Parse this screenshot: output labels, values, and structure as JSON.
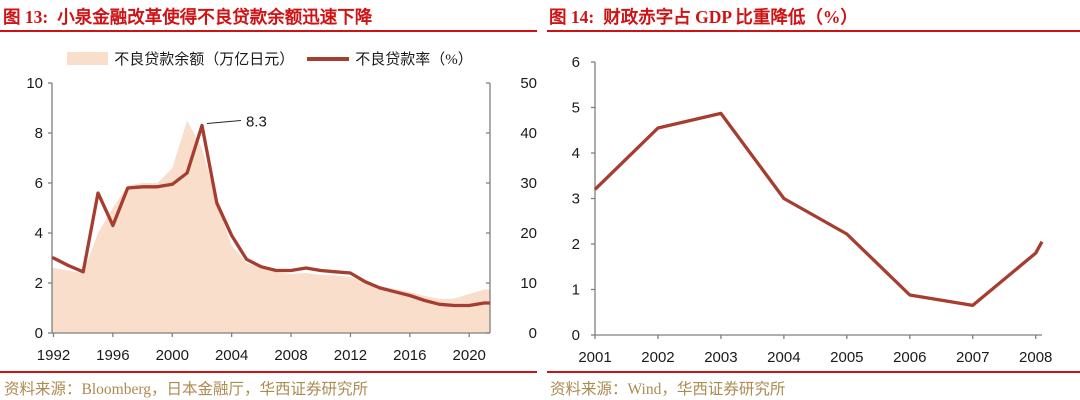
{
  "colors": {
    "accent_red": "#CF1315",
    "series_red": "#A63D31",
    "area_fill": "#F8DECB",
    "source_gold": "#AE8A50",
    "axis_gray": "#7F7F7F",
    "text_dark": "#1A1A1A"
  },
  "panels": [
    {
      "title_prefix": "图 13:",
      "title": "小泉金融改革使得不良贷款余额迅速下降",
      "legend": [
        {
          "label": "不良贷款余额（万亿日元）"
        },
        {
          "label": "不良贷款率（%）"
        }
      ],
      "source": "资料来源：Bloomberg，日本金融厅，华西证券研究所"
    },
    {
      "title_prefix": "图 14:",
      "title": "财政赤字占 GDP 比重降低（%）",
      "source": "资料来源：Wind，华西证券研究所"
    }
  ],
  "chart_data": [
    {
      "type": "area",
      "subtype": "dual-axis combo: area + line",
      "title": "小泉金融改革使得不良贷款余额迅速下降",
      "x": [
        1992,
        1993,
        1994,
        1995,
        1996,
        1997,
        1998,
        1999,
        2000,
        2001,
        2002,
        2003,
        2004,
        2005,
        2006,
        2007,
        2008,
        2009,
        2010,
        2011,
        2012,
        2013,
        2014,
        2015,
        2016,
        2017,
        2018,
        2019,
        2020,
        2021
      ],
      "series": [
        {
          "name": "不良贷款余额（万亿日元）",
          "type": "area",
          "axis": "right",
          "values": [
            13,
            12.5,
            12,
            20,
            25,
            29.5,
            30,
            30,
            33,
            42.5,
            37,
            26,
            17.5,
            14,
            13,
            12.2,
            11.8,
            12,
            11.6,
            11.5,
            11.2,
            10.3,
            9.4,
            8.8,
            8.2,
            7.4,
            6.8,
            6.9,
            7.8,
            8.7
          ]
        },
        {
          "name": "不良贷款率（%）",
          "type": "line",
          "axis": "left",
          "values": [
            3.0,
            2.7,
            2.45,
            5.6,
            4.3,
            5.8,
            5.85,
            5.85,
            5.95,
            6.4,
            8.3,
            5.2,
            3.9,
            2.95,
            2.65,
            2.5,
            2.5,
            2.6,
            2.5,
            2.45,
            2.4,
            2.05,
            1.8,
            1.65,
            1.5,
            1.3,
            1.15,
            1.1,
            1.1,
            1.2
          ]
        }
      ],
      "left_ylim": [
        0,
        10
      ],
      "right_ylim": [
        0,
        50
      ],
      "left_ticks": [
        0,
        2,
        4,
        6,
        8,
        10
      ],
      "right_ticks": [
        0,
        10,
        20,
        30,
        40,
        50
      ],
      "x_ticks": [
        1992,
        1996,
        2000,
        2004,
        2008,
        2012,
        2016,
        2020
      ],
      "annotation": {
        "text": "8.3",
        "x": 2002,
        "value": 8.3,
        "axis": "left"
      },
      "grid": false,
      "legend_position": "top"
    },
    {
      "type": "line",
      "title": "财政赤字占 GDP 比重降低（%）",
      "points": [
        [
          2001,
          3.2
        ],
        [
          2002,
          4.55
        ],
        [
          2003,
          4.87
        ],
        [
          2004,
          3.0
        ],
        [
          2005,
          2.22
        ],
        [
          2006,
          0.88
        ],
        [
          2007,
          0.65
        ],
        [
          2008,
          1.8
        ],
        [
          2008.1,
          2.05
        ]
      ],
      "ylim": [
        0,
        6
      ],
      "y_ticks": [
        0,
        1,
        2,
        3,
        4,
        5,
        6
      ],
      "x_ticks": [
        2001,
        2002,
        2003,
        2004,
        2005,
        2006,
        2007,
        2008
      ],
      "grid": false,
      "legend_position": "none"
    }
  ]
}
